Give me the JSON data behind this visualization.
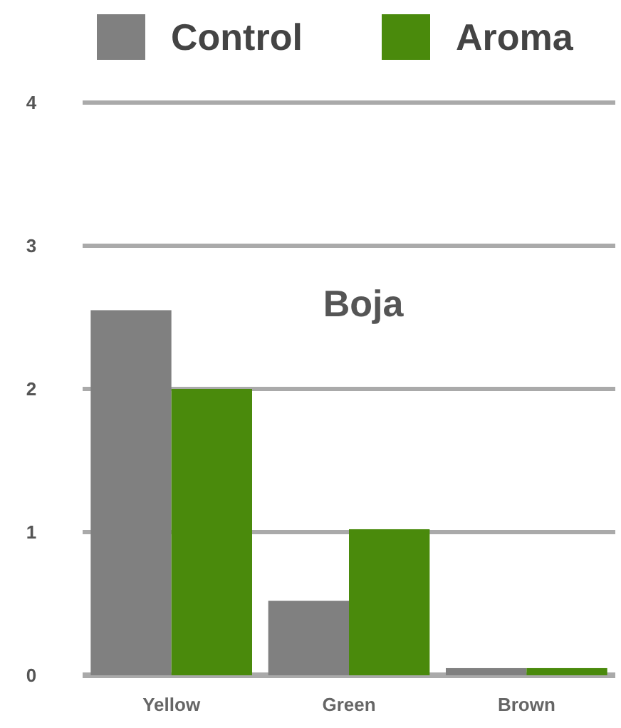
{
  "chart_data": {
    "type": "bar",
    "title": "Boja",
    "categories": [
      "Yellow",
      "Green",
      "Brown"
    ],
    "series": [
      {
        "name": "Control",
        "color": "#808080",
        "values": [
          2.55,
          0.52,
          0.05
        ]
      },
      {
        "name": "Aroma",
        "color": "#4a8a0c",
        "values": [
          2.0,
          1.02,
          0.05
        ]
      }
    ],
    "ylim": [
      0,
      4
    ],
    "yticks": [
      0,
      1,
      2,
      3,
      4
    ],
    "grid": "y",
    "legend": "top"
  }
}
